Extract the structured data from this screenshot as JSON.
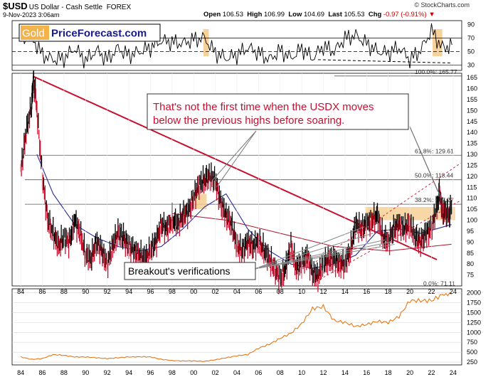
{
  "header": {
    "symbol": "$USD",
    "description": "US Dollar - Cash Settle",
    "exchange": "FOREX",
    "date": "9-Nov-2023 3:06am",
    "credit": "© StockCharts.com",
    "open_label": "Open",
    "open": "106.53",
    "high_label": "High",
    "high": "106.99",
    "low_label": "Low",
    "low": "104.69",
    "last_label": "Last",
    "last": "105.53",
    "chg_label": "Chg",
    "chg": "-0.97 (-0.91%)"
  },
  "logo": {
    "gold": "Gold",
    "rest": "PriceForecast.com"
  },
  "annotations": {
    "main": "That's not the first time when the USDX moves below the previous highs before soaring.",
    "main_lines": [
      "That's not the first time when the USDX moves",
      "below the previous highs before soaring."
    ],
    "breakout": "Breakout's verifications"
  },
  "chart_data": [
    {
      "type": "line",
      "panel": "rsi",
      "y_ticks": [
        30,
        50,
        70,
        90
      ],
      "ylim": [
        22,
        96
      ],
      "reference_lines": [
        30,
        50,
        70
      ],
      "series": [
        {
          "x": [
            1984,
            1985,
            1986,
            1987,
            1988,
            1989,
            1990,
            1991,
            1992,
            1993,
            1994,
            1995,
            1996,
            1997,
            1998,
            1999,
            2000,
            2001,
            2002,
            2003,
            2004,
            2005,
            2006,
            2007,
            2008,
            2009,
            2010,
            2011,
            2012,
            2013,
            2014,
            2015,
            2016,
            2017,
            2018,
            2019,
            2020,
            2021,
            2022,
            2023,
            2023.9
          ],
          "values": [
            68,
            72,
            45,
            38,
            40,
            55,
            36,
            52,
            38,
            55,
            44,
            50,
            56,
            66,
            64,
            62,
            68,
            70,
            48,
            40,
            45,
            56,
            48,
            38,
            52,
            40,
            55,
            40,
            58,
            50,
            70,
            74,
            62,
            50,
            48,
            56,
            38,
            52,
            82,
            55,
            60
          ]
        }
      ]
    },
    {
      "type": "line",
      "panel": "price",
      "title": "$USD US Dollar - Cash Settle FOREX",
      "x_ticks": [
        "84",
        "86",
        "88",
        "90",
        "92",
        "94",
        "96",
        "98",
        "00",
        "02",
        "04",
        "06",
        "08",
        "10",
        "12",
        "14",
        "16",
        "18",
        "20",
        "22",
        "24"
      ],
      "y_ticks": [
        75,
        80,
        85,
        90,
        95,
        100,
        105,
        110,
        115,
        120,
        125,
        130,
        135,
        140,
        145,
        150,
        155,
        160,
        165
      ],
      "ylim": [
        70,
        167
      ],
      "fib_levels": [
        {
          "label": "100.0%: 165.77",
          "value": 165.77
        },
        {
          "label": "61.8%: 129.61",
          "value": 129.61
        },
        {
          "label": "50.0%: 118.44",
          "value": 118.44
        },
        {
          "label": "38.2%: 107.27",
          "value": 107.27
        },
        {
          "label": "0.0%: 71.11",
          "value": 71.11
        }
      ],
      "series": [
        {
          "x": [
            1984,
            1984.5,
            1985,
            1985.2,
            1985.5,
            1986,
            1986.5,
            1987,
            1987.5,
            1988,
            1988.5,
            1989,
            1989.5,
            1990,
            1990.5,
            1991,
            1991.5,
            1992,
            1992.5,
            1993,
            1993.5,
            1994,
            1994.5,
            1995,
            1995.5,
            1996,
            1996.5,
            1997,
            1997.5,
            1998,
            1998.5,
            1999,
            1999.5,
            2000,
            2000.5,
            2001,
            2001.5,
            2002,
            2002.5,
            2003,
            2003.5,
            2004,
            2004.5,
            2005,
            2005.5,
            2006,
            2006.5,
            2007,
            2007.5,
            2008,
            2008.5,
            2009,
            2009.5,
            2010,
            2010.5,
            2011,
            2011.5,
            2012,
            2012.5,
            2013,
            2013.5,
            2014,
            2014.5,
            2015,
            2015.5,
            2016,
            2016.5,
            2017,
            2017.5,
            2018,
            2018.5,
            2019,
            2019.5,
            2020,
            2020.5,
            2021,
            2021.5,
            2022,
            2022.5,
            2022.8,
            2023,
            2023.3,
            2023.6,
            2023.85
          ],
          "values": [
            122,
            140,
            152,
            165,
            150,
            120,
            100,
            94,
            88,
            92,
            90,
            100,
            94,
            84,
            82,
            90,
            86,
            80,
            88,
            94,
            92,
            88,
            86,
            84,
            82,
            86,
            90,
            98,
            96,
            100,
            98,
            102,
            104,
            110,
            116,
            118,
            120,
            118,
            108,
            102,
            98,
            88,
            86,
            90,
            88,
            90,
            86,
            82,
            78,
            73,
            78,
            88,
            78,
            80,
            84,
            76,
            74,
            80,
            82,
            82,
            80,
            80,
            86,
            98,
            96,
            98,
            100,
            102,
            92,
            90,
            96,
            98,
            96,
            98,
            92,
            90,
            94,
            96,
            106,
            113,
            103,
            104,
            102,
            106
          ],
          "name": ""
        },
        {
          "x": [
            1985.5,
            1987,
            1989,
            1991,
            1993,
            1995,
            1997,
            1999,
            2001,
            2003,
            2005,
            2007,
            2009,
            2011,
            2013,
            2015,
            2017,
            2019,
            2021,
            2023.85
          ],
          "values": [
            130,
            112,
            98,
            92,
            88,
            86,
            88,
            96,
            106,
            112,
            96,
            86,
            80,
            78,
            80,
            84,
            95,
            96,
            94,
            98
          ]
        },
        {
          "x": [
            1998,
            2003,
            2008,
            2013,
            2018,
            2023.85
          ],
          "values": [
            103,
            100,
            94,
            88,
            86,
            89
          ]
        }
      ]
    },
    {
      "type": "line",
      "panel": "lower",
      "y_ticks": [
        250,
        500,
        750,
        1000,
        1250,
        1500,
        1750,
        2000
      ],
      "ylim": [
        180,
        2100
      ],
      "series": [
        {
          "x": [
            1984,
            1985,
            1986,
            1987,
            1988,
            1989,
            1990,
            1991,
            1992,
            1993,
            1994,
            1995,
            1996,
            1997,
            1998,
            1999,
            2000,
            2001,
            2002,
            2003,
            2004,
            2005,
            2006,
            2007,
            2008,
            2009,
            2010,
            2011,
            2012,
            2013,
            2014,
            2015,
            2016,
            2017,
            2018,
            2019,
            2020,
            2021,
            2022,
            2023,
            2023.85
          ],
          "values": [
            380,
            320,
            340,
            440,
            420,
            380,
            380,
            360,
            340,
            360,
            380,
            385,
            380,
            320,
            290,
            280,
            280,
            270,
            310,
            360,
            410,
            440,
            600,
            700,
            850,
            980,
            1220,
            1600,
            1650,
            1300,
            1250,
            1150,
            1200,
            1280,
            1250,
            1400,
            1800,
            1800,
            1800,
            1950,
            1960
          ]
        }
      ]
    }
  ]
}
